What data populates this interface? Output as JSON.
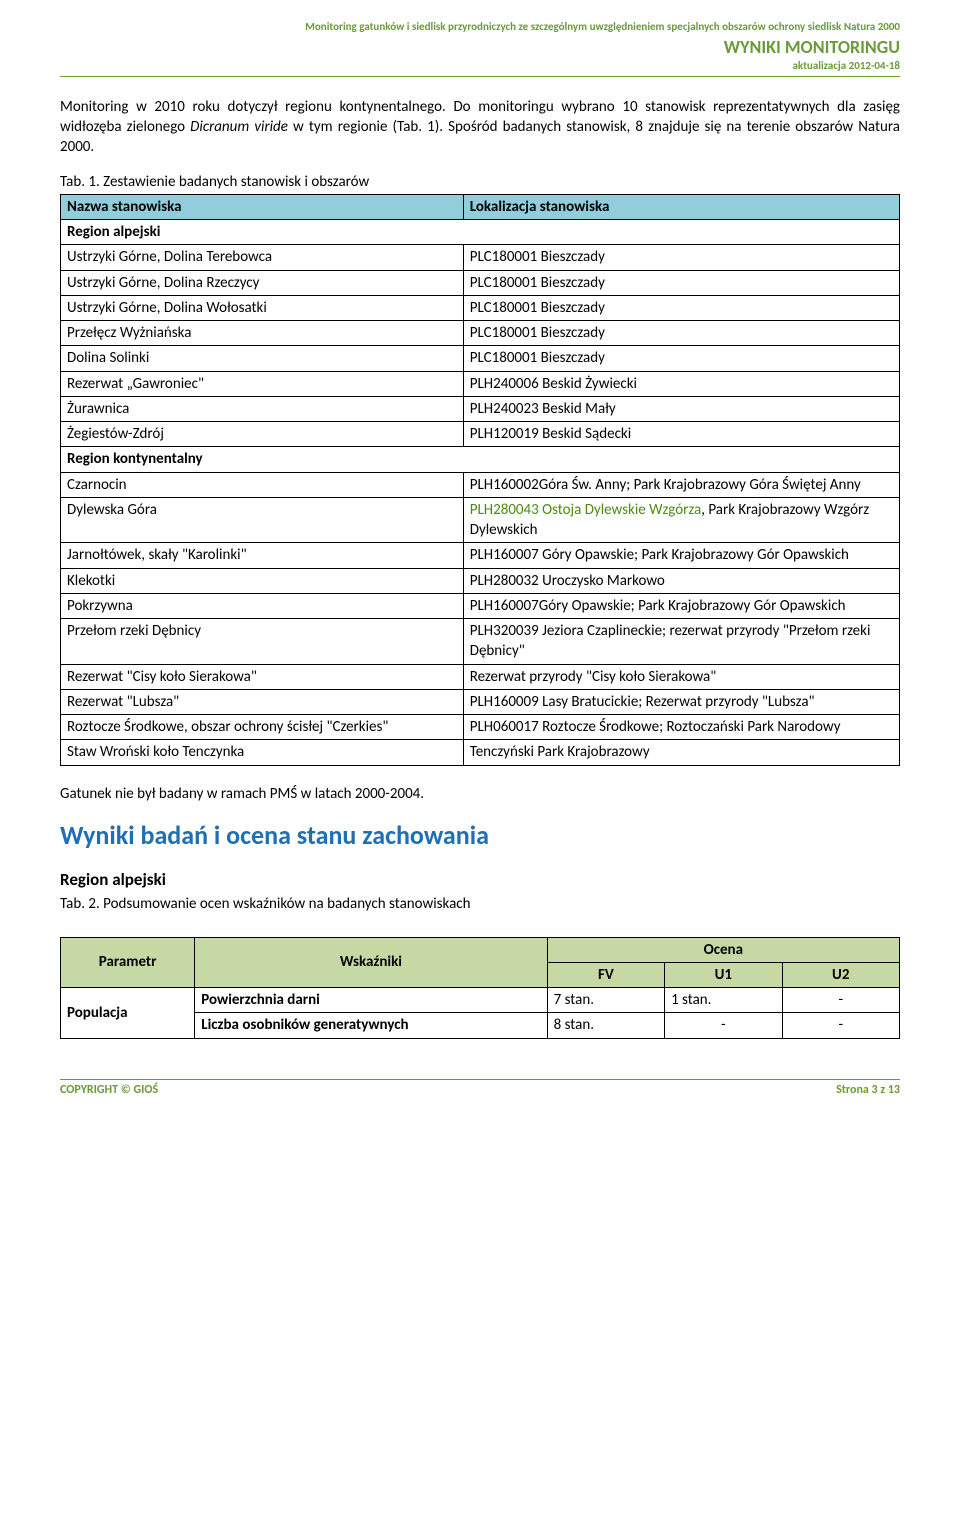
{
  "header": {
    "line1": "Monitoring gatunków i siedlisk przyrodniczych ze szczególnym uwzględnieniem specjalnych obszarów ochrony siedlisk Natura 2000",
    "line2": "WYNIKI MONITORINGU",
    "line3": "aktualizacja 2012-04-18"
  },
  "intro": {
    "p1a": "Monitoring w 2010 roku dotyczył regionu kontynentalnego. Do monitoringu wybrano 10 stanowisk reprezentatywnych dla zasięg widłozęba zielonego ",
    "p1b": "Dicranum viride",
    "p1c": " w tym regionie (Tab. 1). Spośród badanych stanowisk, 8 znajduje się na terenie obszarów Natura 2000."
  },
  "table1": {
    "caption": "Tab. 1. Zestawienie badanych stanowisk i obszarów",
    "colHeader1": "Nazwa stanowiska",
    "colHeader2": "Lokalizacja stanowiska",
    "region1": "Region alpejski",
    "region2": "Region kontynentalny",
    "rowsR1": [
      {
        "c1": "Ustrzyki Górne, Dolina Terebowca",
        "c2": "PLC180001 Bieszczady",
        "center1": true
      },
      {
        "c1": "Ustrzyki Górne, Dolina Rzeczycy",
        "c2": "PLC180001 Bieszczady",
        "center1": true
      },
      {
        "c1": "Ustrzyki Górne, Dolina Wołosatki",
        "c2": "PLC180001 Bieszczady",
        "center1": true
      },
      {
        "c1": "Przełęcz Wyżniańska",
        "c2": "PLC180001 Bieszczady",
        "center1": true
      },
      {
        "c1": "Dolina Solinki",
        "c2": "PLC180001 Bieszczady",
        "center1": true
      },
      {
        "c1": "Rezerwat „Gawroniec\"",
        "c2": "PLH240006 Beskid Żywiecki",
        "center1": true
      },
      {
        "c1": "Żurawnica",
        "c2": "PLH240023 Beskid Mały",
        "center1": true
      },
      {
        "c1": "Żegiestów-Zdrój",
        "c2": "PLH120019 Beskid Sądecki",
        "center1": true
      }
    ],
    "rowsR2": [
      {
        "c1": "Czarnocin",
        "c2": "PLH160002Góra Św. Anny; Park Krajobrazowy Góra Świętej Anny"
      },
      {
        "c1": "Dylewska Góra",
        "c2pre": "PLH280043 Ostoja Dylewskie Wzgórza",
        "c2post": ", Park Krajobrazowy Wzgórz Dylewskich"
      },
      {
        "c1": "Jarnołtówek, skały \"Karolinki\"",
        "c2": "PLH160007 Góry Opawskie; Park Krajobrazowy Gór Opawskich"
      },
      {
        "c1": "Klekotki",
        "c2": "PLH280032 Uroczysko Markowo"
      },
      {
        "c1": "Pokrzywna",
        "c2": "PLH160007Góry Opawskie; Park Krajobrazowy Gór Opawskich"
      },
      {
        "c1": "Przełom rzeki Dębnicy",
        "c2": "PLH320039 Jeziora Czaplineckie; rezerwat przyrody \"Przełom rzeki Dębnicy\""
      },
      {
        "c1": "Rezerwat \"Cisy koło Sierakowa\"",
        "c2": "Rezerwat przyrody \"Cisy koło Sierakowa\""
      },
      {
        "c1": "Rezerwat \"Lubsza\"",
        "c2": "PLH160009 Lasy Bratucickie; Rezerwat przyrody \"Lubsza\""
      },
      {
        "c1": "Roztocze Środkowe, obszar ochrony ścisłej \"Czerkies\"",
        "c2": "PLH060017 Roztocze Środkowe; Roztoczański Park Narodowy"
      },
      {
        "c1": "Staw Wroński koło Tenczynka",
        "c2": "Tenczyński Park Krajobrazowy"
      }
    ]
  },
  "afterTable": "Gatunek nie był badany w ramach PMŚ w latach 2000-2004.",
  "section2": {
    "heading": "Wyniki badań i ocena stanu zachowania",
    "subheading": "Region alpejski",
    "caption": "Tab. 2. Podsumowanie ocen wskaźników na badanych stanowiskach",
    "colParam": "Parametr",
    "colWsk": "Wskaźniki",
    "colOcena": "Ocena",
    "colFV": "FV",
    "colU1": "U1",
    "colU2": "U2",
    "rows": [
      {
        "param": "Populacja",
        "wsk": "Powierzchnia darni",
        "fv": "7 stan.",
        "u1": "1 stan.",
        "u2": "-"
      },
      {
        "wsk": "Liczba osobników generatywnych",
        "fv": "8 stan.",
        "u1": "-",
        "u2": "-"
      }
    ]
  },
  "footer": {
    "left": "COPYRIGHT © GIOŚ",
    "right": "Strona 3 z 13"
  }
}
